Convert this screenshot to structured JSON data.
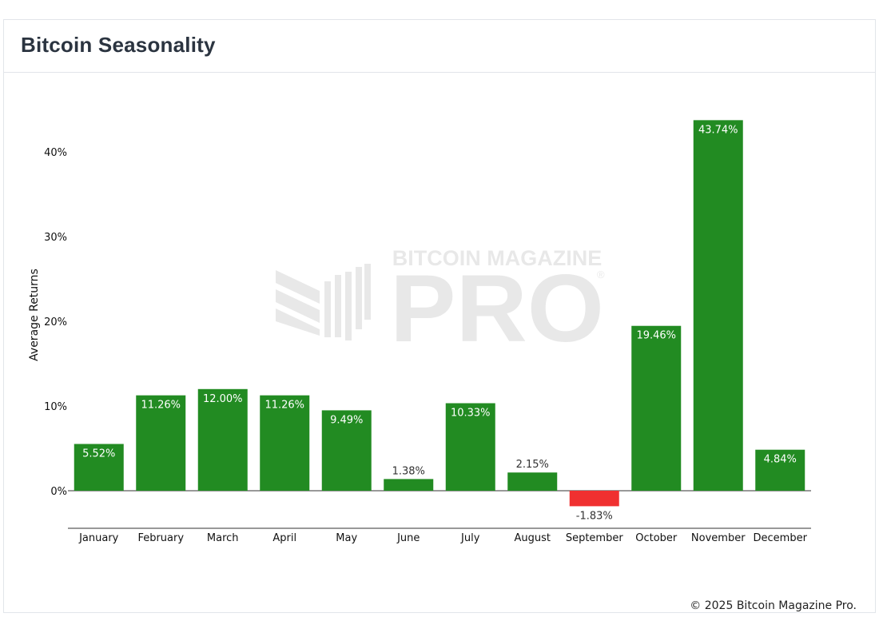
{
  "header": {
    "title": "Bitcoin Seasonality"
  },
  "watermark": {
    "line1": "BITCOIN MAGAZINE",
    "line2": "PRO",
    "registered": "®"
  },
  "footer": {
    "copyright": "© 2025 Bitcoin Magazine Pro."
  },
  "chart_data": {
    "type": "bar",
    "title": "Bitcoin Seasonality",
    "xlabel": "",
    "ylabel": "Average Returns",
    "ylim": [
      -4.5,
      47
    ],
    "yticks": [
      0,
      10,
      20,
      30,
      40
    ],
    "ytick_labels": [
      "0%",
      "10%",
      "20%",
      "30%",
      "40%"
    ],
    "categories": [
      "January",
      "February",
      "March",
      "April",
      "May",
      "June",
      "July",
      "August",
      "September",
      "October",
      "November",
      "December"
    ],
    "values": [
      5.52,
      11.26,
      12.0,
      11.26,
      9.49,
      1.38,
      10.33,
      2.15,
      -1.83,
      19.46,
      43.74,
      4.84
    ],
    "labels": [
      "5.52%",
      "11.26%",
      "12.00%",
      "11.26%",
      "9.49%",
      "1.38%",
      "10.33%",
      "2.15%",
      "-1.83%",
      "19.46%",
      "43.74%",
      "4.84%"
    ],
    "colors": {
      "positive": "#228b22",
      "negative": "#f03030",
      "label_inside": "#ffffff",
      "label_outside": "#333333"
    }
  }
}
